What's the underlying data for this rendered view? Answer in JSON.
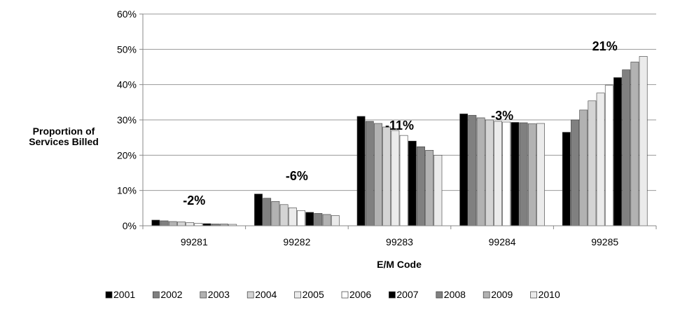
{
  "chart_data": {
    "type": "bar",
    "xlabel": "E/M Code",
    "ylabel_lines": [
      "Proportion of",
      "Services Billed"
    ],
    "ylim": [
      0,
      60
    ],
    "y_tick_labels": [
      "0%",
      "10%",
      "20%",
      "30%",
      "40%",
      "50%",
      "60%"
    ],
    "grid": true,
    "legend_position": "bottom",
    "categories": [
      "99281",
      "99282",
      "99283",
      "99284",
      "99285"
    ],
    "annotations": [
      "-2%",
      "-6%",
      "-11%",
      "-3%",
      "21%"
    ],
    "series": [
      {
        "name": "2001",
        "color": "#000000",
        "values": [
          1.6,
          9.0,
          31.0,
          31.7,
          26.5
        ]
      },
      {
        "name": "2002",
        "color": "#808080",
        "values": [
          1.4,
          7.8,
          29.6,
          31.3,
          30.0
        ]
      },
      {
        "name": "2003",
        "color": "#b2b2b2",
        "values": [
          1.2,
          6.9,
          29.0,
          30.6,
          32.8
        ]
      },
      {
        "name": "2004",
        "color": "#d4d4d4",
        "values": [
          1.1,
          6.0,
          28.0,
          30.0,
          35.4
        ]
      },
      {
        "name": "2005",
        "color": "#ebebeb",
        "values": [
          0.9,
          5.1,
          27.0,
          29.6,
          37.6
        ]
      },
      {
        "name": "2006",
        "color": "#ffffff",
        "values": [
          0.7,
          4.3,
          25.6,
          29.4,
          39.8
        ]
      },
      {
        "name": "2007",
        "color": "#000000",
        "values": [
          0.6,
          3.8,
          24.0,
          29.3,
          42.0
        ]
      },
      {
        "name": "2008",
        "color": "#808080",
        "values": [
          0.5,
          3.5,
          22.4,
          29.2,
          44.2
        ]
      },
      {
        "name": "2009",
        "color": "#b2b2b2",
        "values": [
          0.5,
          3.2,
          21.4,
          28.9,
          46.4
        ]
      },
      {
        "name": "2010",
        "color": "#ebebeb",
        "values": [
          0.4,
          2.9,
          20.0,
          29.0,
          48.0
        ]
      }
    ]
  }
}
